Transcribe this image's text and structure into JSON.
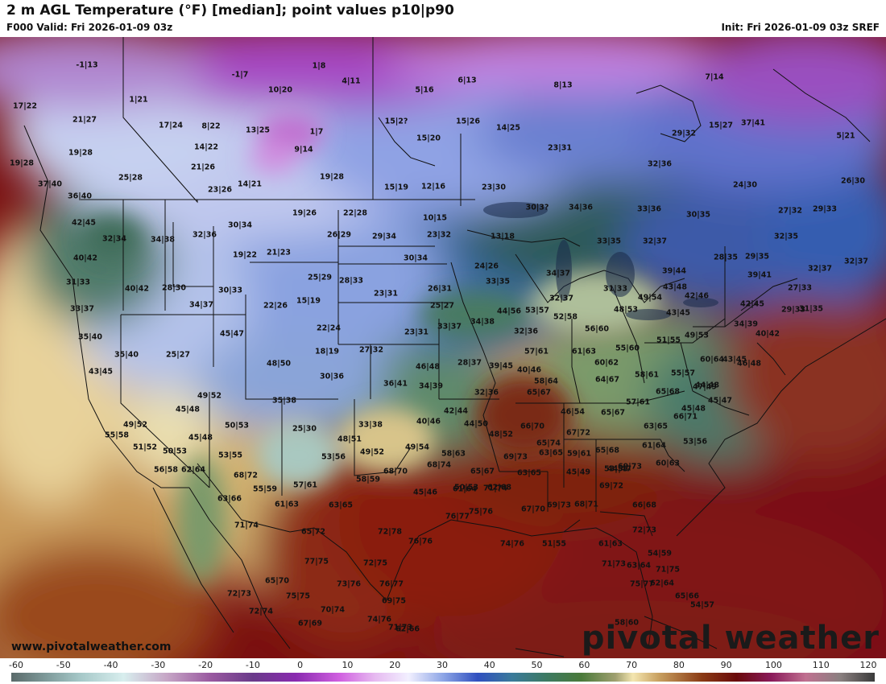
{
  "header": {
    "title": "2 m AGL Temperature (°F) [median]; point values p10|p90",
    "valid": "F000 Valid: Fri 2026-01-09 03z",
    "init": "Init: Fri 2026-01-09 03z SREF"
  },
  "footer": {
    "site": "www.pivotalweather.com",
    "brand": "pivotal weather"
  },
  "colorbar": {
    "ticks": [
      "-60",
      "-50",
      "-40",
      "-30",
      "-20",
      "-10",
      "0",
      "10",
      "20",
      "30",
      "40",
      "50",
      "60",
      "70",
      "80",
      "90",
      "100",
      "110",
      "120"
    ]
  },
  "points": [
    "-1|13",
    "-1|7",
    "1|8",
    "4|11",
    "5|16",
    "6|13",
    "8|13",
    "17|22",
    "1|21",
    "10|20",
    "21|27",
    "17|24",
    "8|22",
    "13|25",
    "1|7",
    "15|2?",
    "15|26",
    "14|25",
    "7|14",
    "19|28",
    "15|27",
    "14|22",
    "9|14",
    "15|20",
    "29|32",
    "19|28",
    "37|41",
    "21|26",
    "23|31",
    "5|21",
    "25|28",
    "32|36",
    "37|40",
    "23|26",
    "14|21",
    "19|28",
    "15|19",
    "12|16",
    "23|30",
    "24|30",
    "26|30",
    "36|40",
    "19|26",
    "22|28",
    "10|15",
    "30|3?",
    "34|36",
    "33|36",
    "30|35",
    "27|32",
    "29|33",
    "42|45",
    "30|34",
    "26|29",
    "29|34",
    "23|32",
    "13|18",
    "32|34",
    "34|38",
    "32|36",
    "19|22",
    "21|23",
    "30|34",
    "24|26",
    "33|35",
    "32|37",
    "32|35",
    "28|35",
    "29|35",
    "32|37",
    "40|42",
    "25|29",
    "28|33",
    "33|35",
    "34|37",
    "39|44",
    "32|37",
    "31|33",
    "40|42",
    "28|30",
    "30|33",
    "22|26",
    "15|19",
    "23|31",
    "26|31",
    "31|33",
    "43|48",
    "39|41",
    "27|33",
    "33|37",
    "34|37",
    "25|27",
    "32|37",
    "49|54",
    "42|46",
    "42|45",
    "29|33",
    "35|40",
    "45|47",
    "22|24",
    "23|31",
    "33|37",
    "34|38",
    "44|56",
    "53|57",
    "52|58",
    "48|53",
    "43|45",
    "34|39",
    "31|35",
    "35|40",
    "25|27",
    "18|19",
    "27|32",
    "32|36",
    "56|60",
    "55|60",
    "51|55",
    "49|53",
    "40|42",
    "43|45",
    "48|50",
    "30|36",
    "28|37",
    "39|45",
    "57|61",
    "61|63",
    "60|62",
    "60|64",
    "43|45",
    "46|48",
    "46|48",
    "36|41",
    "34|39",
    "40|46",
    "64|67",
    "58|61",
    "55|57",
    "44|48",
    "45|48",
    "49|52",
    "35|38",
    "32|36",
    "58|64",
    "65|67",
    "65|68",
    "47|49",
    "45|47",
    "45|48",
    "42|44",
    "46|54",
    "65|67",
    "57|61",
    "50|53",
    "25|30",
    "33|38",
    "40|46",
    "44|50",
    "66|70",
    "66|71",
    "49|52",
    "45|48",
    "48|51",
    "48|52",
    "67|72",
    "63|65",
    "55|58",
    "51|52",
    "50|53",
    "53|55",
    "53|56",
    "49|52",
    "49|54",
    "58|63",
    "65|74",
    "65|68",
    "61|64",
    "53|56",
    "56|58",
    "62|64",
    "68|74",
    "69|73",
    "63|65",
    "59|61",
    "44|47",
    "60|63",
    "68|72",
    "68|70",
    "65|67",
    "63|65",
    "45|49",
    "53|55",
    "55|59",
    "57|61",
    "58|59",
    "45|46",
    "50|53",
    "62|68",
    "69|72",
    "69|73",
    "63|66",
    "61|63",
    "63|65",
    "61|64",
    "71|74",
    "67|70",
    "69|73",
    "68|71",
    "66|68",
    "72|73",
    "72|78",
    "76|77",
    "76|76",
    "75|76",
    "74|76",
    "51|55",
    "61|63",
    "54|59",
    "65|72",
    "71|74",
    "77|75",
    "72|75",
    "71|73",
    "63|64",
    "71|75",
    "69|75",
    "73|76",
    "76|77",
    "62|64",
    "65|70",
    "72|73",
    "75|75",
    "75|77",
    "65|66",
    "54|57",
    "70|74",
    "74|76",
    "71|73",
    "58|60",
    "72|74",
    "67|69",
    "62|66"
  ]
}
